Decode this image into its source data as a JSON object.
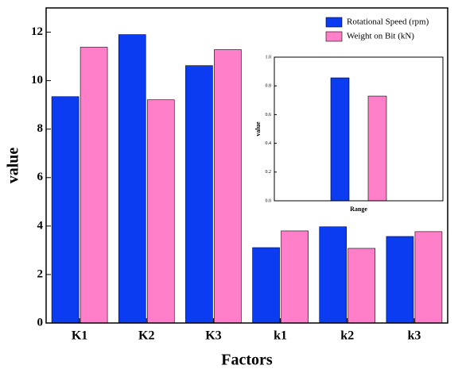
{
  "chart_data": [
    {
      "type": "bar",
      "x_label": "Factors",
      "y_label": "value",
      "categories": [
        "K1",
        "K2",
        "K3",
        "k1",
        "k2",
        "k3"
      ],
      "series": [
        {
          "name": "Rotational Speed (rpm)",
          "color": "#0c3cf2",
          "values": [
            9.34,
            11.9,
            10.62,
            3.11,
            3.97,
            3.57
          ]
        },
        {
          "name": "Weight on Bit (kN)",
          "color": "#ff80c9",
          "values": [
            11.38,
            9.21,
            11.28,
            3.8,
            3.08,
            3.77
          ]
        }
      ],
      "ylim": [
        0,
        13
      ],
      "yticks": [
        0,
        2,
        4,
        6,
        8,
        10,
        12
      ],
      "legend": "upper right"
    },
    {
      "type": "bar",
      "x_label": "Range",
      "y_label": "value",
      "categories": [
        null
      ],
      "series": [
        {
          "color": "#0c3cf2",
          "values": [
            0.856
          ]
        },
        {
          "color": "#ff80c9",
          "values": [
            0.729
          ]
        }
      ],
      "ylim": [
        0,
        1
      ],
      "yticks": [
        {
          "value": 0,
          "label": "0.0"
        },
        0.2,
        0.4,
        0.6,
        0.8,
        {
          "value": 1,
          "label": "1.0"
        }
      ]
    }
  ]
}
